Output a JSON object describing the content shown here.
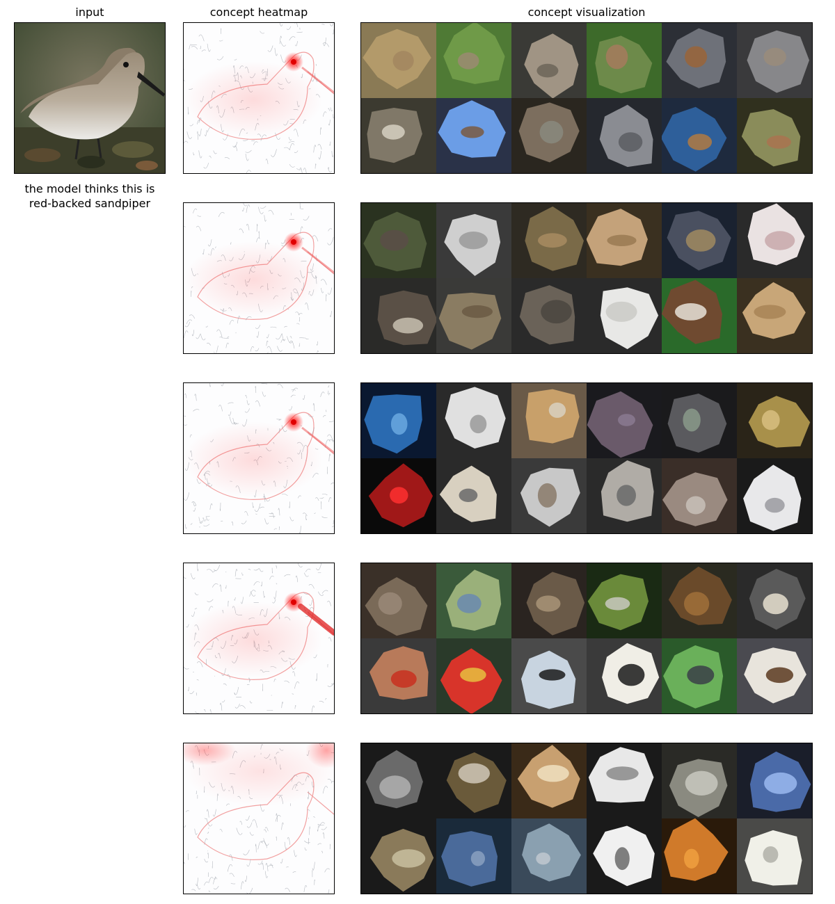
{
  "headers": {
    "input": "input",
    "heatmap": "concept heatmap",
    "visualization": "concept visualization"
  },
  "caption": {
    "line1": "the model thinks this is",
    "line2": "red-backed sandpiper"
  },
  "concepts": [
    {
      "heat": "eye",
      "tiles": [
        [
          "#8a7a55",
          "#b39a6a",
          "#a2865f"
        ],
        [
          "#4f7a35",
          "#6f9a48",
          "#9b8a72"
        ],
        [
          "#3a3a36",
          "#a09484",
          "#6c6558"
        ],
        [
          "#3d6a2a",
          "#6d8a4a",
          "#a67a5d"
        ],
        [
          "#2c2f36",
          "#6e7179",
          "#9a6438"
        ],
        [
          "#3a3a3c",
          "#87878a",
          "#9a8c7a"
        ],
        [
          "#3c3a30",
          "#807868",
          "#d6d0c2"
        ],
        [
          "#2a3248",
          "#6b9de6",
          "#7a5a40"
        ],
        [
          "#2a261f",
          "#7c6e5e",
          "#8a8a7e"
        ],
        [
          "#25282e",
          "#8a8c92",
          "#5a5d62"
        ],
        [
          "#1e2a3e",
          "#2e5f9a",
          "#b07a42"
        ],
        [
          "#30301e",
          "#8a8c5a",
          "#a97350"
        ]
      ]
    },
    {
      "heat": "eye",
      "tiles": [
        [
          "#2a3220",
          "#4e5a3a",
          "#5a4e48"
        ],
        [
          "#3a3a3a",
          "#cfcfcf",
          "#9a9a9a"
        ],
        [
          "#2e2a22",
          "#7a6a48",
          "#a88b62"
        ],
        [
          "#3a3020",
          "#c4a27a",
          "#9a7a52"
        ],
        [
          "#1a2230",
          "#4a5060",
          "#a08a60"
        ],
        [
          "#2a2a2a",
          "#eae2e2",
          "#c8a8aa"
        ],
        [
          "#2a2a28",
          "#5a5046",
          "#c8c0b0"
        ],
        [
          "#3a3a38",
          "#8a7c62",
          "#6a5a44"
        ],
        [
          "#2a2a2a",
          "#6a6258",
          "#4a4640"
        ],
        [
          "#2a2a2a",
          "#e8e8e6",
          "#cacac6"
        ],
        [
          "#2a6a2a",
          "#6f4a30",
          "#e8e2d8"
        ],
        [
          "#3a3020",
          "#c8a678",
          "#a88456"
        ]
      ]
    },
    {
      "heat": "eye",
      "tiles": [
        [
          "#0a1830",
          "#2a6ab0",
          "#6aa8e0"
        ],
        [
          "#2a2a2a",
          "#e0e0e0",
          "#9a9a9a"
        ],
        [
          "#6a5a48",
          "#c8a06a",
          "#d8d0c0"
        ],
        [
          "#1a1a1e",
          "#6a5a6a",
          "#8a7a90"
        ],
        [
          "#1a1a1c",
          "#5a5a5e",
          "#8a9a8a"
        ],
        [
          "#2a2418",
          "#a8904a",
          "#d8c080"
        ],
        [
          "#0a0a0a",
          "#a01818",
          "#ff3030"
        ],
        [
          "#2a2a2a",
          "#d8d0c0",
          "#6a6a6a"
        ],
        [
          "#3a3a3a",
          "#c8c8c8",
          "#8a7a6a"
        ],
        [
          "#2a2a2a",
          "#b0aca6",
          "#6a6a6a"
        ],
        [
          "#3a2e28",
          "#9a8a80",
          "#c8c0b8"
        ],
        [
          "#1a1a1a",
          "#e8e8ea",
          "#9a9aa0"
        ]
      ]
    },
    {
      "heat": "eyebill",
      "tiles": [
        [
          "#3a3028",
          "#7a6a58",
          "#9a8878"
        ],
        [
          "#3a5a3a",
          "#9ab07a",
          "#6a8ab0"
        ],
        [
          "#2a2420",
          "#6a5a48",
          "#a89478"
        ],
        [
          "#1a2a14",
          "#6a8a3a",
          "#c8c8c0"
        ],
        [
          "#2a2a20",
          "#6a4a2a",
          "#a0703a"
        ],
        [
          "#2a2a2a",
          "#5a5a5a",
          "#e8e0d0"
        ],
        [
          "#3a3a3a",
          "#b87a5a",
          "#c83020"
        ],
        [
          "#2a3a2a",
          "#d8342a",
          "#e8c040"
        ],
        [
          "#4a4a4a",
          "#c8d4e0",
          "#1a1a1a"
        ],
        [
          "#3a3a3a",
          "#f0eee6",
          "#1a1a1a"
        ],
        [
          "#2a5a2a",
          "#6ab05a",
          "#3a4048"
        ],
        [
          "#4a4a50",
          "#e8e4dc",
          "#5a3a20"
        ]
      ]
    },
    {
      "heat": "top",
      "tiles": [
        [
          "#1a1a1a",
          "#6a6a6a",
          "#b0b0b0"
        ],
        [
          "#1a1a1a",
          "#6a5a3a",
          "#d0c8b8"
        ],
        [
          "#3a2a18",
          "#c8a070",
          "#f0e0c0"
        ],
        [
          "#1a1a1a",
          "#e8e8e8",
          "#8a8a8a"
        ],
        [
          "#2a2a26",
          "#8a8a80",
          "#c8c8c0"
        ],
        [
          "#1a1e2a",
          "#4a6aa8",
          "#9ab8f0"
        ],
        [
          "#1a1a1a",
          "#8a7a5a",
          "#c8c0a0"
        ],
        [
          "#1a2a3a",
          "#4a6a9a",
          "#8aa0c0"
        ],
        [
          "#3a4a5a",
          "#8aa0b0",
          "#c0c8d0"
        ],
        [
          "#1a1a1a",
          "#f0f0f0",
          "#6a6a6a"
        ],
        [
          "#2a1a0a",
          "#d07a2a",
          "#f0a040"
        ],
        [
          "#4a4a48",
          "#f0f0e8",
          "#b0b0a8"
        ]
      ]
    }
  ]
}
